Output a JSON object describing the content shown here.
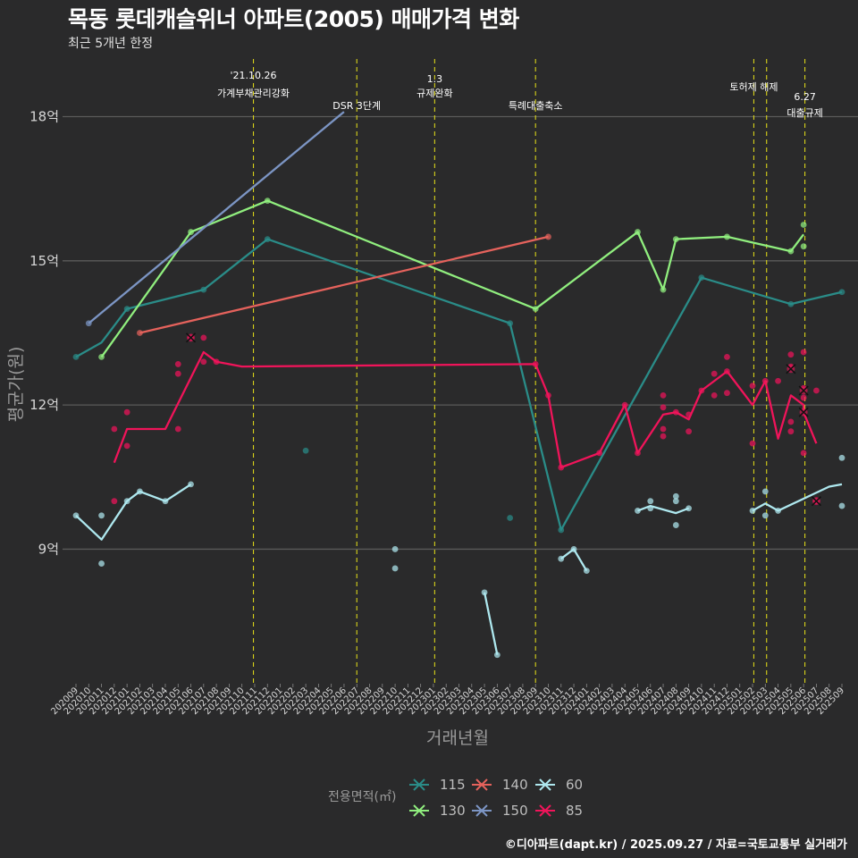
{
  "title": "목동 롯데캐슬위너 아파트(2005) 매매가격 변화",
  "subtitle": "최근 5개년 한정",
  "footer": "©디아파트(dapt.kr) / 2025.09.27 / 자료=국토교통부 실거래가",
  "chart_data": {
    "type": "line",
    "title": "목동 롯데캐슬위너 아파트(2005) 매매가격 변화",
    "xlabel": "거래년월",
    "ylabel": "평균가(원)",
    "ylim": [
      6.2,
      19.2
    ],
    "yticks": [
      9,
      12,
      15,
      18
    ],
    "ytick_labels": [
      "9억",
      "12억",
      "15억",
      "18억"
    ],
    "grid": true,
    "categories": [
      "202009",
      "202010",
      "202011",
      "202012",
      "202101",
      "202102",
      "202103",
      "202104",
      "202105",
      "202106",
      "202107",
      "202108",
      "202109",
      "202110",
      "202111",
      "202112",
      "202201",
      "202202",
      "202203",
      "202204",
      "202205",
      "202206",
      "202207",
      "202208",
      "202209",
      "202210",
      "202211",
      "202212",
      "202301",
      "202302",
      "202303",
      "202304",
      "202305",
      "202306",
      "202307",
      "202308",
      "202309",
      "202310",
      "202311",
      "202312",
      "202401",
      "202402",
      "202403",
      "202404",
      "202405",
      "202406",
      "202407",
      "202408",
      "202409",
      "202410",
      "202411",
      "202412",
      "202501",
      "202502",
      "202503",
      "202504",
      "202505",
      "202506",
      "202507",
      "202508",
      "202509"
    ],
    "events": [
      {
        "at": "202110.9",
        "label": "'21.10.26\n가계부채관리강화"
      },
      {
        "at": "202207",
        "label": "DSR 3단계"
      },
      {
        "at": "202301.1",
        "label": "1.3\n규제완화"
      },
      {
        "at": "202309",
        "label": "특례대출축소"
      },
      {
        "at": "202502.1",
        "label": "토허제 해제"
      },
      {
        "at": "202503.1",
        "label": ""
      },
      {
        "at": "202506.1",
        "label": "6.27\n대출규제"
      }
    ],
    "series": [
      {
        "name": "115",
        "color": "#2a8c88",
        "line": [
          [
            "202009",
            13.0
          ],
          [
            "202011",
            13.3
          ],
          [
            "202101",
            14.0
          ],
          [
            "202107",
            14.4
          ],
          [
            "202112",
            15.45
          ],
          [
            "202307",
            13.7
          ],
          [
            "202311",
            9.4
          ],
          [
            "202410",
            14.65
          ],
          [
            "202505",
            14.1
          ],
          [
            "202509",
            14.35
          ]
        ],
        "points": [
          [
            "202009",
            13.0
          ],
          [
            "202101",
            14.0
          ],
          [
            "202107",
            14.4
          ],
          [
            "202112",
            15.45
          ],
          [
            "202203",
            11.05
          ],
          [
            "202307",
            13.7
          ],
          [
            "202307",
            9.65
          ],
          [
            "202311",
            9.4
          ],
          [
            "202410",
            14.65
          ],
          [
            "202505",
            14.1
          ],
          [
            "202509",
            14.35
          ]
        ]
      },
      {
        "name": "130",
        "color": "#90ee7e",
        "line": [
          [
            "202011",
            13.0
          ],
          [
            "202106",
            15.6
          ],
          [
            "202112",
            16.25
          ],
          [
            "202309",
            14.0
          ],
          [
            "202405",
            15.6
          ],
          [
            "202407",
            14.4
          ],
          [
            "202408",
            15.45
          ],
          [
            "202412",
            15.5
          ],
          [
            "202505",
            15.2
          ],
          [
            "202506",
            15.55
          ]
        ],
        "points": [
          [
            "202011",
            13.0
          ],
          [
            "202106",
            15.6
          ],
          [
            "202112",
            16.25
          ],
          [
            "202309",
            14.0
          ],
          [
            "202405",
            15.6
          ],
          [
            "202407",
            14.4
          ],
          [
            "202408",
            15.45
          ],
          [
            "202412",
            15.5
          ],
          [
            "202505",
            15.2
          ],
          [
            "202506",
            15.75
          ],
          [
            "202506",
            15.3
          ]
        ]
      },
      {
        "name": "140",
        "color": "#e5625c",
        "line": [
          [
            "202102",
            13.5
          ],
          [
            "202310",
            15.5
          ]
        ],
        "points": [
          [
            "202102",
            13.5
          ],
          [
            "202310",
            15.5
          ]
        ]
      },
      {
        "name": "150",
        "color": "#7c95c4",
        "line": [
          [
            "202010",
            13.7
          ],
          [
            "202206",
            18.1
          ]
        ],
        "points": [
          [
            "202010",
            13.7
          ]
        ]
      },
      {
        "name": "60",
        "color": "#aee8ef",
        "line": [
          [
            "202009",
            9.7
          ],
          [
            "202011",
            9.2
          ],
          [
            "202101",
            10.0
          ],
          [
            "202102",
            10.2
          ],
          [
            "202104",
            10.0
          ],
          [
            "202106",
            10.35
          ],
          [
            "__gap__",
            0
          ],
          [
            "202305",
            8.1
          ],
          [
            "202306",
            6.8
          ],
          [
            "__gap__",
            0
          ],
          [
            "202311",
            8.8
          ],
          [
            "202312",
            9.0
          ],
          [
            "202401",
            8.55
          ],
          [
            "__gap__",
            0
          ],
          [
            "202405",
            9.8
          ],
          [
            "202406",
            9.9
          ],
          [
            "202408",
            9.75
          ],
          [
            "202409",
            9.85
          ],
          [
            "__gap__",
            0
          ],
          [
            "202502",
            9.8
          ],
          [
            "202503",
            9.95
          ],
          [
            "202504",
            9.8
          ],
          [
            "202508",
            10.3
          ],
          [
            "202509",
            10.35
          ]
        ],
        "points": [
          [
            "202009",
            9.7
          ],
          [
            "202011",
            9.7
          ],
          [
            "202011",
            8.7
          ],
          [
            "202101",
            10.0
          ],
          [
            "202102",
            10.2
          ],
          [
            "202104",
            10.0
          ],
          [
            "202106",
            10.35
          ],
          [
            "202210",
            9.0
          ],
          [
            "202210",
            8.6
          ],
          [
            "202305",
            8.1
          ],
          [
            "202306",
            6.8
          ],
          [
            "202311",
            8.8
          ],
          [
            "202312",
            9.0
          ],
          [
            "202401",
            8.55
          ],
          [
            "202405",
            9.8
          ],
          [
            "202406",
            10.0
          ],
          [
            "202406",
            9.85
          ],
          [
            "202408",
            10.1
          ],
          [
            "202408",
            10.0
          ],
          [
            "202408",
            9.5
          ],
          [
            "202409",
            9.85
          ],
          [
            "202502",
            9.8
          ],
          [
            "202503",
            10.2
          ],
          [
            "202503",
            9.7
          ],
          [
            "202504",
            9.8
          ],
          [
            "202509",
            10.9
          ],
          [
            "202509",
            9.9
          ]
        ]
      },
      {
        "name": "85",
        "color": "#f0145a",
        "line": [
          [
            "202012",
            10.8
          ],
          [
            "202101",
            11.5
          ],
          [
            "202104",
            11.5
          ],
          [
            "202107",
            13.1
          ],
          [
            "202108",
            12.9
          ],
          [
            "202110",
            12.8
          ],
          [
            "202309",
            12.85
          ],
          [
            "202310",
            12.2
          ],
          [
            "202311",
            10.7
          ],
          [
            "202402",
            11.0
          ],
          [
            "202404",
            12.0
          ],
          [
            "202405",
            11.0
          ],
          [
            "202407",
            11.8
          ],
          [
            "202408",
            11.85
          ],
          [
            "202409",
            11.7
          ],
          [
            "202410",
            12.3
          ],
          [
            "202412",
            12.7
          ],
          [
            "202502",
            12.0
          ],
          [
            "202503",
            12.5
          ],
          [
            "202504",
            11.3
          ],
          [
            "202505",
            12.2
          ],
          [
            "202506",
            12.0
          ],
          [
            "202506",
            11.85
          ],
          [
            "202507",
            11.2
          ]
        ],
        "points": [
          [
            "202012",
            11.5
          ],
          [
            "202012",
            10.0
          ],
          [
            "202101",
            11.85
          ],
          [
            "202101",
            11.15
          ],
          [
            "202105",
            12.85
          ],
          [
            "202105",
            12.65
          ],
          [
            "202105",
            11.5
          ],
          [
            "202106",
            13.4
          ],
          [
            "202107",
            13.4
          ],
          [
            "202107",
            12.9
          ],
          [
            "202108",
            12.9
          ],
          [
            "202309",
            12.85
          ],
          [
            "202310",
            12.2
          ],
          [
            "202311",
            10.7
          ],
          [
            "202402",
            11.0
          ],
          [
            "202404",
            12.0
          ],
          [
            "202405",
            11.0
          ],
          [
            "202407",
            12.2
          ],
          [
            "202407",
            11.95
          ],
          [
            "202407",
            11.5
          ],
          [
            "202407",
            11.35
          ],
          [
            "202408",
            11.85
          ],
          [
            "202409",
            11.8
          ],
          [
            "202409",
            11.45
          ],
          [
            "202410",
            12.3
          ],
          [
            "202411",
            12.65
          ],
          [
            "202411",
            12.2
          ],
          [
            "202412",
            13.0
          ],
          [
            "202412",
            12.7
          ],
          [
            "202412",
            12.25
          ],
          [
            "202502",
            12.4
          ],
          [
            "202502",
            11.2
          ],
          [
            "202503",
            12.5
          ],
          [
            "202504",
            12.5
          ],
          [
            "202505",
            13.05
          ],
          [
            "202505",
            12.8
          ],
          [
            "202505",
            11.65
          ],
          [
            "202505",
            11.45
          ],
          [
            "202506",
            13.1
          ],
          [
            "202506",
            12.35
          ],
          [
            "202506",
            12.15
          ],
          [
            "202506",
            11.0
          ],
          [
            "202507",
            12.3
          ],
          [
            "202507",
            10.0
          ]
        ],
        "cancelled": [
          [
            "202106",
            13.4
          ],
          [
            "202505",
            12.75
          ],
          [
            "202506",
            12.3
          ],
          [
            "202506",
            11.85
          ],
          [
            "202507",
            10.0
          ]
        ]
      }
    ],
    "legend": {
      "title": "전용면적(㎡)",
      "position": "bottom",
      "entries": [
        "115",
        "140",
        "60",
        "130",
        "150",
        "85"
      ]
    }
  }
}
